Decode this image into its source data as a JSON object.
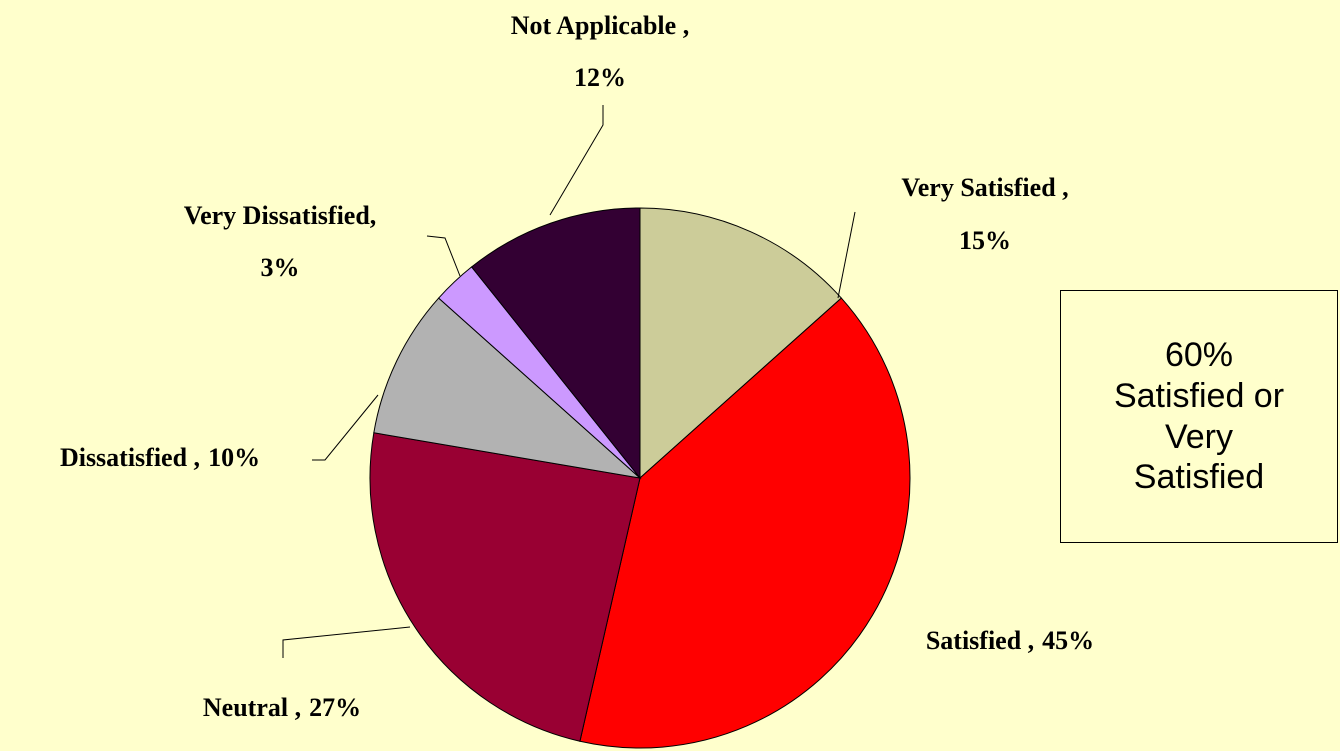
{
  "chart_data": {
    "type": "pie",
    "categories": [
      "Very Satisfied ,",
      "Satisfied ,",
      "Neutral ,",
      "Dissatisfied ,",
      "Very Dissatisfied,",
      "Not Applicable ,"
    ],
    "values": [
      15,
      45,
      27,
      10,
      3,
      12
    ],
    "value_labels": [
      "15%",
      "45%",
      "27%",
      "10%",
      "3%",
      "12%"
    ],
    "colors": [
      "#cccc99",
      "#ff0000",
      "#990033",
      "#b2b2b2",
      "#cc99ff",
      "#330033"
    ],
    "annotation": "60% Satisfied or Very Satisfied"
  }
}
